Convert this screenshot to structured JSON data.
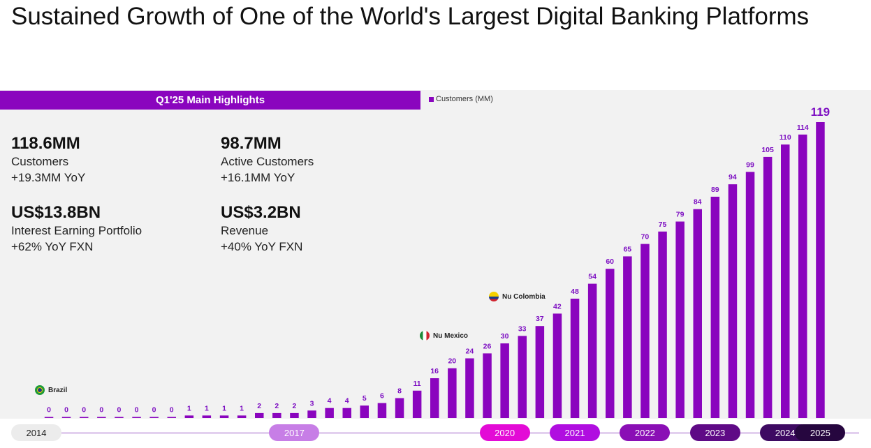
{
  "title": "Sustained Growth of One of the World's Largest Digital Banking Platforms",
  "highlights": {
    "header": "Q1'25 Main Highlights",
    "items": [
      {
        "value": "118.6MM",
        "label": "Customers",
        "sub": "+19.3MM YoY"
      },
      {
        "value": "98.7MM",
        "label": "Active Customers",
        "sub": "+16.1MM YoY"
      },
      {
        "value": "US$13.8BN",
        "label": "Interest Earning Portfolio",
        "sub": "+62% YoY FXN"
      },
      {
        "value": "US$3.2BN",
        "label": "Revenue",
        "sub": "+40% YoY FXN"
      }
    ]
  },
  "markers": {
    "brazil": "Brazil",
    "mexico": "Nu Mexico",
    "colombia": "Nu Colombia"
  },
  "colors": {
    "bar": "#8a05be",
    "label": "#7d0fc2",
    "pill_2014": "#ececec",
    "pill_2017": "#c77ee6",
    "pill_2020": "#e30bd6",
    "pill_2021": "#b00ee0",
    "pill_2022": "#8a0fb5",
    "pill_2023": "#5f0a86",
    "pill_2024": "#3e0a62",
    "pill_2025": "#26063f"
  },
  "chart_data": {
    "type": "bar",
    "legend": "Customers (MM)",
    "series": [
      {
        "name": "Customers (MM)",
        "values": [
          0,
          0,
          0,
          0,
          0,
          0,
          0,
          0,
          1,
          1,
          1,
          1,
          2,
          2,
          2,
          3,
          4,
          4,
          5,
          6,
          8,
          11,
          16,
          20,
          24,
          26,
          30,
          33,
          37,
          42,
          48,
          54,
          60,
          65,
          70,
          75,
          79,
          84,
          89,
          94,
          99,
          105,
          110,
          114,
          119
        ]
      }
    ],
    "years": [
      {
        "label": "2014",
        "index": 0
      },
      {
        "label": "2017",
        "index": 14
      },
      {
        "label": "2020",
        "index": 26
      },
      {
        "label": "2021",
        "index": 30
      },
      {
        "label": "2022",
        "index": 34
      },
      {
        "label": "2023",
        "index": 38
      },
      {
        "label": "2024",
        "index": 42
      },
      {
        "label": "2025",
        "index": 44
      }
    ],
    "ylim": [
      0,
      119
    ]
  }
}
